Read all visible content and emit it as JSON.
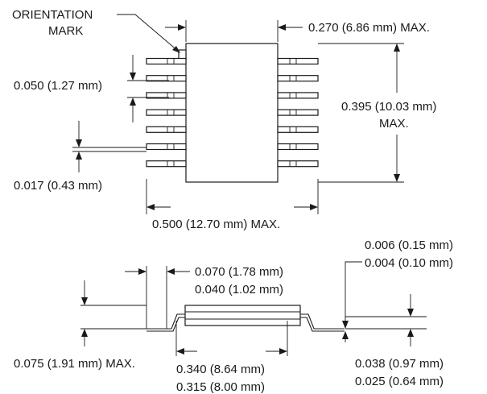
{
  "top_view": {
    "orientation_mark_label": [
      "ORIENTATION",
      "MARK"
    ],
    "body_width_label": "0.270 (6.86 mm) MAX.",
    "lead_pitch_label": "0.050 (1.27 mm)",
    "body_length_label": [
      "0.395 (10.03 mm)",
      "MAX."
    ],
    "lead_width_label": "0.017 (0.43 mm)",
    "overall_width_label": "0.500 (12.70 mm) MAX."
  },
  "side_view": {
    "lead_thickness_label": [
      "0.006 (0.15 mm)",
      "0.004 (0.10 mm)"
    ],
    "body_height_label": [
      "0.070 (1.78 mm)",
      "0.040 (1.02 mm)"
    ],
    "seated_height_label": "0.075 (1.91 mm) MAX.",
    "body_span_label": [
      "0.340 (8.64 mm)",
      "0.315 (8.00 mm)"
    ],
    "foot_length_label": [
      "0.038 (0.97 mm)",
      "0.025 (0.64 mm)"
    ]
  },
  "leads_per_side": 7
}
